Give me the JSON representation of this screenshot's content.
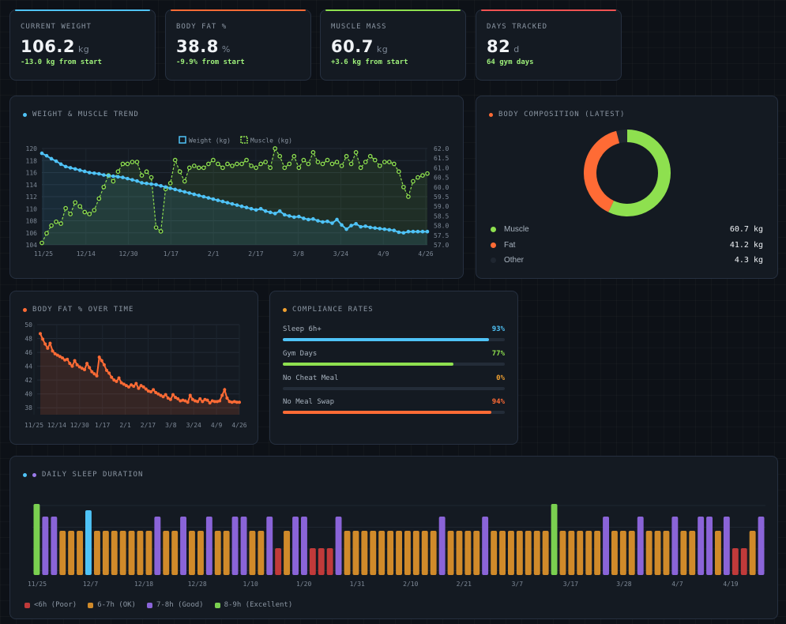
{
  "stats": [
    {
      "label": "CURRENT WEIGHT",
      "value": "106.2",
      "unit": "kg",
      "sub": "-13.0 kg from start",
      "accent": "#4fc3f7",
      "sub_color": "#9ef07a"
    },
    {
      "label": "BODY FAT %",
      "value": "38.8",
      "unit": "%",
      "sub": "-9.9% from start",
      "accent": "#ff6b35",
      "sub_color": "#9ef07a"
    },
    {
      "label": "MUSCLE MASS",
      "value": "60.7",
      "unit": "kg",
      "sub": "+3.6 kg from start",
      "accent": "#8ee04f",
      "sub_color": "#9ef07a"
    },
    {
      "label": "DAYS TRACKED",
      "value": "82",
      "unit": "d",
      "sub": "64 gym days",
      "accent": "#f05252",
      "sub_color": "#9ef07a"
    }
  ],
  "trend": {
    "title": "WEIGHT & MUSCLE TREND",
    "title_dot": "#4fc3f7",
    "legend": [
      {
        "name": "Weight (kg)",
        "color": "#4fc3f7"
      },
      {
        "name": "Muscle (kg)",
        "color": "#8ee04f"
      }
    ]
  },
  "composition": {
    "title": "BODY COMPOSITION (LATEST)",
    "title_dot": "#ff6b35",
    "items": [
      {
        "name": "Muscle",
        "value": "60.7 kg",
        "kg": 60.7,
        "color": "#8ee04f"
      },
      {
        "name": "Fat",
        "value": "41.2 kg",
        "kg": 41.2,
        "color": "#ff6b35"
      },
      {
        "name": "Other",
        "value": "4.3 kg",
        "kg": 4.3,
        "color": "#1f2630"
      }
    ]
  },
  "bodyfat": {
    "title": "BODY FAT % OVER TIME",
    "title_dot": "#ff6b35"
  },
  "compliance": {
    "title": "COMPLIANCE RATES",
    "title_dot": "#f0a030",
    "items": [
      {
        "label": "Sleep 6h+",
        "pct_label": "93%",
        "pct": 93,
        "color": "#4fc3f7"
      },
      {
        "label": "Gym Days",
        "pct_label": "77%",
        "pct": 77,
        "color": "#8ee04f"
      },
      {
        "label": "No Cheat Meal",
        "pct_label": "0%",
        "pct": 0,
        "color": "#f0a030"
      },
      {
        "label": "No Meal Swap",
        "pct_label": "94%",
        "pct": 94,
        "color": "#ff6b35"
      }
    ]
  },
  "sleep": {
    "title": "DAILY SLEEP DURATION",
    "title_dots": [
      "#4fc3f7",
      "#9b7bea"
    ],
    "legend": [
      {
        "name": "<6h (Poor)",
        "color": "#c03a3a"
      },
      {
        "name": "6-7h (OK)",
        "color": "#d08a2a"
      },
      {
        "name": "7-8h (Good)",
        "color": "#8a64d8"
      },
      {
        "name": "8-9h (Excellent)",
        "color": "#7ad050"
      }
    ]
  },
  "chart_data": [
    {
      "type": "line",
      "id": "weight_muscle",
      "x_ticks": [
        "11/25",
        "12/14",
        "12/30",
        "1/17",
        "2/1",
        "2/17",
        "3/8",
        "3/24",
        "4/9",
        "4/26"
      ],
      "y_left": {
        "ticks": [
          104,
          106,
          108,
          110,
          112,
          114,
          116,
          118,
          120
        ],
        "range": [
          104,
          120
        ]
      },
      "y_right": {
        "ticks": [
          "57.0",
          "57.5",
          "58.0",
          "58.5",
          "59.0",
          "59.5",
          "60.0",
          "60.5",
          "61.0",
          "61.5",
          "62.0"
        ],
        "range": [
          57.0,
          62.0
        ]
      },
      "series": [
        {
          "name": "Weight (kg)",
          "axis": "left",
          "color": "#4fc3f7",
          "values": [
            119.2,
            118.8,
            118.3,
            117.9,
            117.4,
            117.0,
            116.8,
            116.6,
            116.4,
            116.2,
            116.0,
            115.9,
            115.8,
            115.6,
            115.5,
            115.4,
            115.3,
            115.2,
            115.0,
            114.8,
            114.6,
            114.3,
            114.2,
            114.1,
            114.0,
            113.8,
            113.6,
            113.4,
            113.2,
            113.0,
            112.8,
            112.6,
            112.4,
            112.2,
            112.0,
            111.8,
            111.6,
            111.4,
            111.2,
            111.0,
            110.8,
            110.6,
            110.4,
            110.2,
            110.0,
            109.8,
            110.0,
            109.6,
            109.4,
            109.2,
            109.6,
            109.0,
            108.8,
            108.6,
            108.7,
            108.4,
            108.2,
            108.3,
            108.0,
            107.8,
            107.9,
            107.6,
            108.2,
            107.3,
            106.6,
            107.2,
            107.5,
            107.0,
            107.1,
            106.9,
            106.8,
            106.7,
            106.6,
            106.5,
            106.4,
            106.1,
            106.0,
            106.2,
            106.2,
            106.2,
            106.2,
            106.2
          ]
        },
        {
          "name": "Muscle (kg)",
          "axis": "right",
          "color": "#8ee04f",
          "values": [
            57.1,
            57.6,
            58.0,
            58.2,
            58.1,
            58.9,
            58.6,
            59.2,
            59.0,
            58.7,
            58.6,
            58.8,
            59.4,
            60.0,
            60.6,
            60.3,
            60.8,
            61.2,
            61.2,
            61.3,
            61.3,
            60.6,
            60.8,
            60.5,
            57.9,
            57.7,
            59.9,
            60.2,
            61.4,
            60.8,
            60.3,
            61.0,
            61.1,
            61.0,
            61.0,
            61.2,
            61.4,
            61.2,
            61.0,
            61.2,
            61.1,
            61.2,
            61.2,
            61.4,
            61.1,
            61.0,
            61.2,
            61.3,
            61.0,
            62.0,
            61.6,
            61.0,
            61.2,
            61.6,
            61.0,
            61.4,
            61.2,
            61.8,
            61.3,
            61.2,
            61.4,
            61.2,
            61.3,
            61.1,
            61.6,
            61.2,
            61.8,
            61.0,
            61.3,
            61.6,
            61.4,
            61.1,
            61.3,
            61.3,
            61.2,
            60.8,
            60.0,
            59.5,
            60.3,
            60.5,
            60.6,
            60.7
          ]
        }
      ]
    },
    {
      "type": "pie",
      "id": "composition",
      "labels": [
        "Muscle",
        "Fat",
        "Other"
      ],
      "values": [
        60.7,
        41.2,
        4.3
      ]
    },
    {
      "type": "area",
      "id": "bodyfat",
      "x_ticks": [
        "11/25",
        "12/14",
        "12/30",
        "1/17",
        "2/1",
        "2/17",
        "3/8",
        "3/24",
        "4/9",
        "4/26"
      ],
      "y_ticks": [
        38,
        40,
        42,
        44,
        46,
        48,
        50
      ],
      "ylim": [
        37,
        50
      ],
      "series": [
        {
          "name": "Body Fat %",
          "color": "#ff6b35",
          "values": [
            48.7,
            47.9,
            47.2,
            46.6,
            47.3,
            46.2,
            45.8,
            45.6,
            45.4,
            45.2,
            44.9,
            45.0,
            44.4,
            44.0,
            44.8,
            44.2,
            43.9,
            43.7,
            43.5,
            44.4,
            43.8,
            43.2,
            42.9,
            42.6,
            45.3,
            44.8,
            44.2,
            43.4,
            43.0,
            42.4,
            42.0,
            41.8,
            42.3,
            41.6,
            41.4,
            41.2,
            41.0,
            41.3,
            41.1,
            41.5,
            40.8,
            41.2,
            41.0,
            40.7,
            40.4,
            40.3,
            40.6,
            40.2,
            40.0,
            39.8,
            39.6,
            39.9,
            39.4,
            39.2,
            39.9,
            39.5,
            39.3,
            39.0,
            39.1,
            39.0,
            38.8,
            39.8,
            39.2,
            39.0,
            38.9,
            39.3,
            38.9,
            39.2,
            39.1,
            38.7,
            39.0,
            38.9,
            38.9,
            39.0,
            39.8,
            40.6,
            39.4,
            38.9,
            38.8,
            38.9,
            38.8,
            38.8
          ]
        }
      ]
    },
    {
      "type": "bar",
      "id": "sleep",
      "x_ticks": [
        "11/25",
        "12/7",
        "12/18",
        "12/28",
        "1/10",
        "1/20",
        "1/31",
        "2/10",
        "2/21",
        "3/7",
        "3/17",
        "3/28",
        "4/7",
        "4/19"
      ],
      "ylim": [
        4,
        9.5
      ],
      "values": [
        8.5,
        7.7,
        7.7,
        6.8,
        6.8,
        6.8,
        8.1,
        6.8,
        6.8,
        6.8,
        6.8,
        6.8,
        6.8,
        6.8,
        7.7,
        6.8,
        6.8,
        7.7,
        6.8,
        6.8,
        7.7,
        6.8,
        6.8,
        7.7,
        7.7,
        6.8,
        6.8,
        7.7,
        5.7,
        6.8,
        7.7,
        7.7,
        5.7,
        5.7,
        5.7,
        7.7,
        6.8,
        6.8,
        6.8,
        6.8,
        6.8,
        6.8,
        6.8,
        6.8,
        6.8,
        6.8,
        6.8,
        7.7,
        6.8,
        6.8,
        6.8,
        6.8,
        7.7,
        6.8,
        6.8,
        6.8,
        6.8,
        6.8,
        6.8,
        6.8,
        8.5,
        6.8,
        6.8,
        6.8,
        6.8,
        6.8,
        7.7,
        6.8,
        6.8,
        6.8,
        7.7,
        6.8,
        6.8,
        6.8,
        7.7,
        6.8,
        6.8,
        7.7,
        7.7,
        6.8,
        7.7,
        5.7,
        5.7,
        6.8,
        7.7
      ]
    }
  ]
}
